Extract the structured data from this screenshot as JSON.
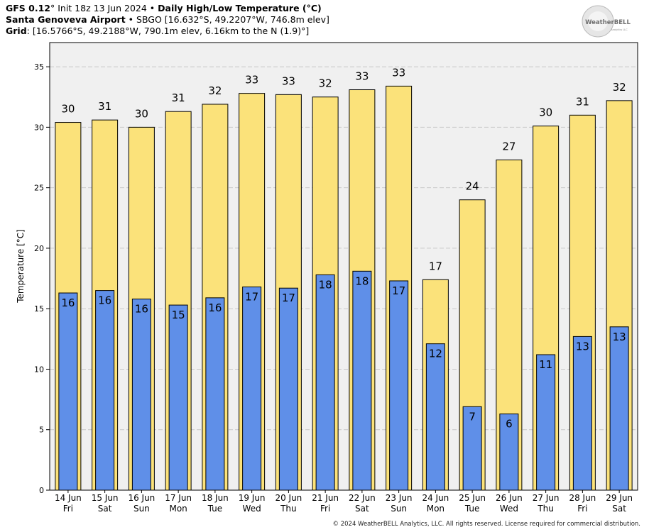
{
  "header": {
    "line1_model": "GFS 0.12",
    "line1_deg": "°",
    "line1_init": " Init 18z 13 Jun 2024",
    "line1_sep": " • ",
    "line1_product": "Daily High/Low Temperature (°C)",
    "line2_site": "Santa Genoveva Airport",
    "line2_sep": " • ",
    "line2_info": "SBGO [16.632°S, 49.2207°W, 746.8m elev]",
    "line3_label": "Grid",
    "line3_info": ": [16.5766°S, 49.2188°W, 790.1m elev, 6.16km to the N (1.9)°]"
  },
  "logo": {
    "text": "WeatherBELL",
    "sub": "Analytics LLC"
  },
  "footer": {
    "text": "© 2024 WeatherBELL Analytics, LLC. All rights reserved. License required for commercial distribution."
  },
  "colors": {
    "high_bar": "#fbe27a",
    "low_bar": "#5f8fe8",
    "plot_bg": "#f0f0f0",
    "grid": "#c8c8c8"
  },
  "chart_data": {
    "type": "bar",
    "ylabel": "Temperature [°C]",
    "ylim": [
      0,
      37
    ],
    "yticks": [
      0,
      5,
      10,
      15,
      20,
      25,
      30,
      35
    ],
    "grid": true,
    "categories": [
      "14 Jun",
      "15 Jun",
      "16 Jun",
      "17 Jun",
      "18 Jun",
      "19 Jun",
      "20 Jun",
      "21 Jun",
      "22 Jun",
      "23 Jun",
      "24 Jun",
      "25 Jun",
      "26 Jun",
      "27 Jun",
      "28 Jun",
      "29 Jun"
    ],
    "weekdays": [
      "Fri",
      "Sat",
      "Sun",
      "Mon",
      "Tue",
      "Wed",
      "Thu",
      "Fri",
      "Sat",
      "Sun",
      "Mon",
      "Tue",
      "Wed",
      "Thu",
      "Fri",
      "Sat"
    ],
    "series": [
      {
        "key": "high",
        "values": [
          30.4,
          30.6,
          30.0,
          31.3,
          31.9,
          32.8,
          32.7,
          32.5,
          33.1,
          33.4,
          17.4,
          24.0,
          27.3,
          30.1,
          31.0,
          32.2
        ],
        "labels": [
          "30",
          "31",
          "30",
          "31",
          "32",
          "33",
          "33",
          "32",
          "33",
          "33",
          "17",
          "24",
          "27",
          "30",
          "31",
          "32"
        ]
      },
      {
        "key": "low",
        "values": [
          16.3,
          16.5,
          15.8,
          15.3,
          15.9,
          16.8,
          16.7,
          17.8,
          18.1,
          17.3,
          12.1,
          6.9,
          6.3,
          11.2,
          12.7,
          13.5
        ],
        "labels": [
          "16",
          "16",
          "16",
          "15",
          "16",
          "17",
          "17",
          "18",
          "18",
          "17",
          "12",
          "7",
          "6",
          "11",
          "13",
          "13"
        ]
      }
    ]
  }
}
